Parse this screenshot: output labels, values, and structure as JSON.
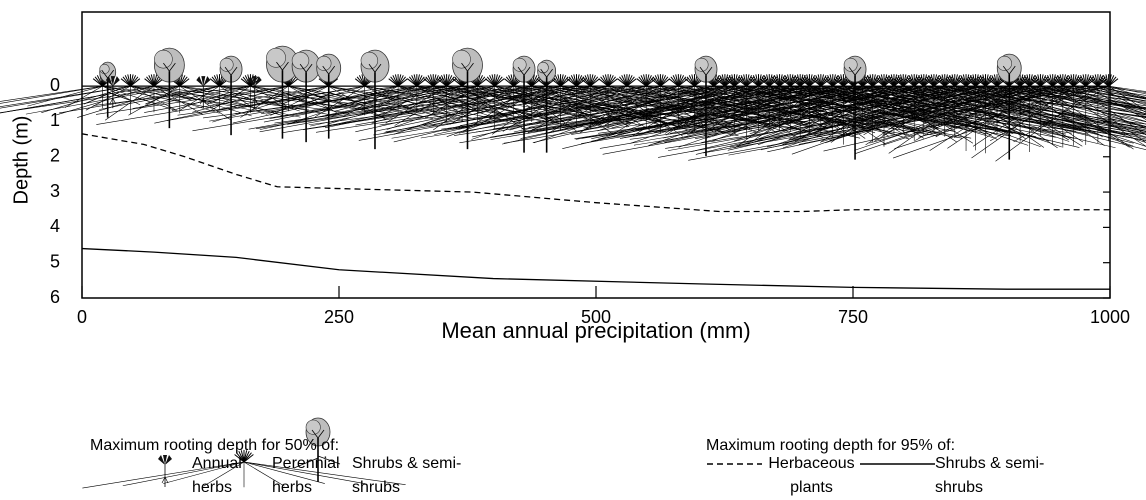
{
  "chart_data": {
    "type": "line",
    "x_label": "Mean annual precipitation (mm)",
    "y_label": "Depth (m)",
    "xlim": [
      0,
      1000
    ],
    "xticks": [
      0,
      250,
      500,
      750,
      1000
    ],
    "ylim": [
      6,
      -2.1
    ],
    "yticks": [
      0,
      1,
      2,
      3,
      4,
      5,
      6
    ],
    "series": [
      {
        "name": "Herbaceous plants",
        "color": "#000000",
        "style": "dashed",
        "x": [
          0,
          60,
          100,
          150,
          190,
          250,
          380,
          500,
          620,
          700,
          750,
          1000
        ],
        "values": [
          1.35,
          1.65,
          2.0,
          2.5,
          2.85,
          2.9,
          3.0,
          3.3,
          3.55,
          3.55,
          3.5,
          3.5
        ]
      },
      {
        "name": "Shrubs & semi-shrubs",
        "color": "#000000",
        "style": "solid",
        "x": [
          0,
          70,
          150,
          250,
          400,
          600,
          750,
          900,
          1000
        ],
        "values": [
          4.6,
          4.7,
          4.85,
          5.2,
          5.45,
          5.6,
          5.7,
          5.75,
          5.75
        ]
      }
    ],
    "legend_50": {
      "heading": "Maximum rooting depth for 50% of:",
      "items": [
        "Annual herbs",
        "Perennial herbs",
        "Shrubs & semi-shrubs"
      ]
    },
    "legend_95_heading": "Maximum rooting depth for 95% of:"
  }
}
